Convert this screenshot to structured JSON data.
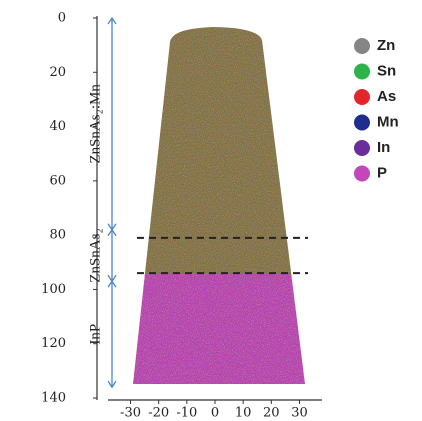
{
  "chart_data": {
    "type": "atom-map",
    "ylim": [
      0,
      140
    ],
    "yticks": [
      0,
      20,
      40,
      60,
      80,
      100,
      120,
      140
    ],
    "y_inverted": true,
    "xlim": [
      -38,
      38
    ],
    "xticks": [
      -30,
      -20,
      -10,
      0,
      10,
      20,
      30
    ],
    "legend": [
      {
        "name": "Zn",
        "color": "#858585"
      },
      {
        "name": "Sn",
        "color": "#2db34a"
      },
      {
        "name": "As",
        "color": "#e3262b"
      },
      {
        "name": "Mn",
        "color": "#1f2d8f"
      },
      {
        "name": "In",
        "color": "#6b2d9c"
      },
      {
        "name": "P",
        "color": "#c447b9"
      }
    ],
    "regions": [
      {
        "label": "ZnSnAs₂:Mn",
        "range": [
          0,
          78
        ]
      },
      {
        "label": "ZnSnAs₂",
        "range": [
          78,
          97
        ]
      },
      {
        "label": "InP",
        "range": [
          97,
          136
        ]
      }
    ],
    "interfaces": [
      81,
      94
    ]
  }
}
